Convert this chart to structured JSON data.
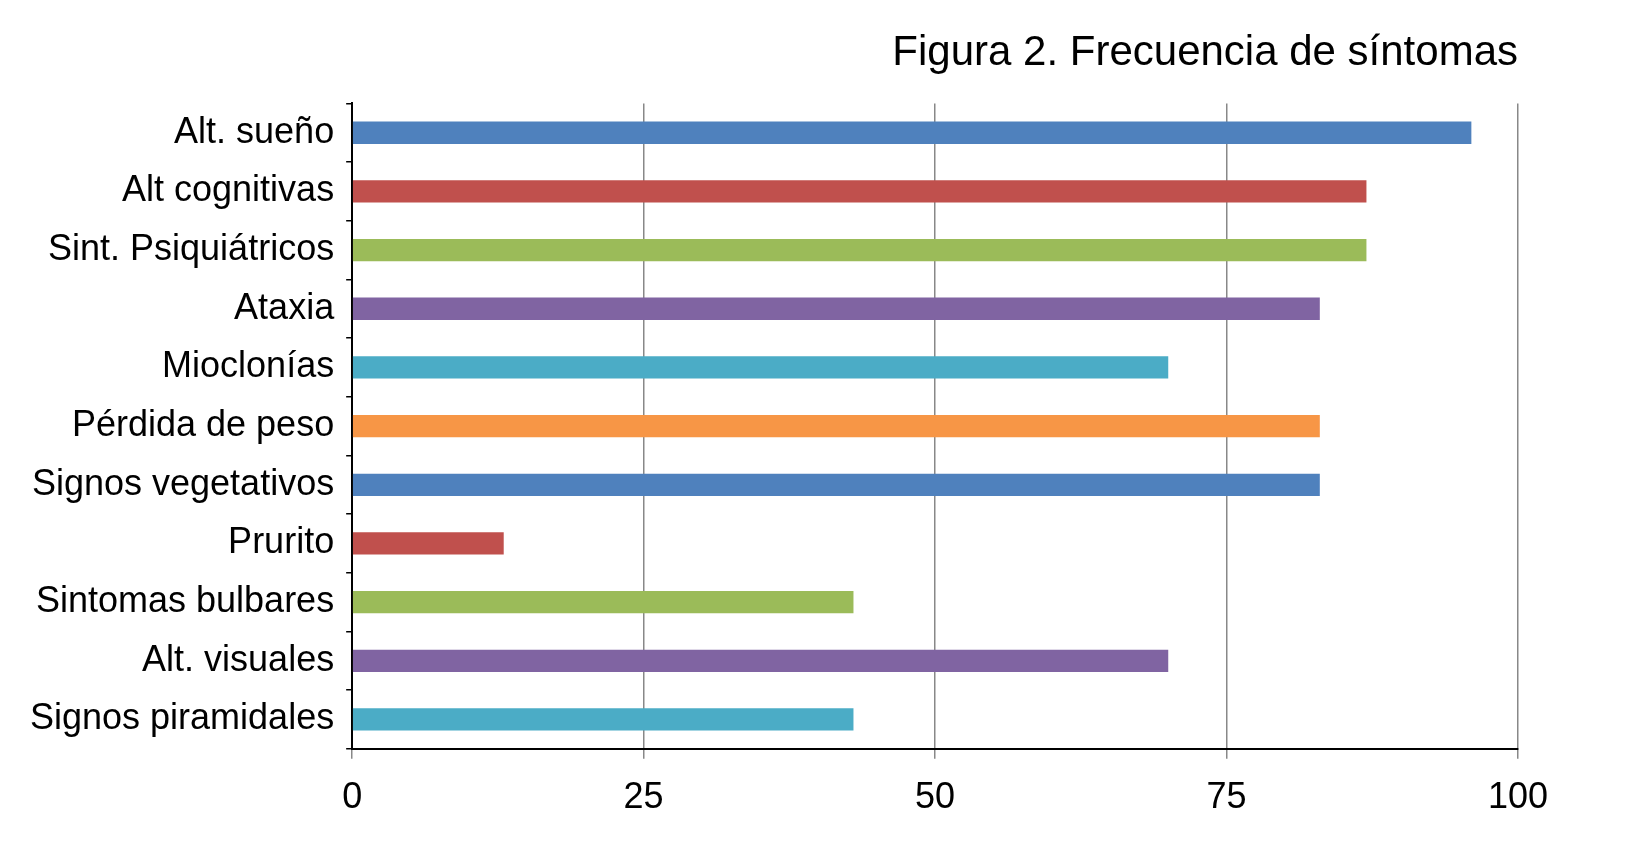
{
  "chart_data": {
    "type": "bar",
    "orientation": "horizontal",
    "title": "Figura 2. Frecuencia de síntomas",
    "categories": [
      "Alt. sueño",
      "Alt cognitivas",
      "Sint. Psiquiátricos",
      "Ataxia",
      "Mioclonías",
      "Pérdida de peso",
      "Signos vegetativos",
      "Prurito",
      "Sintomas bulbares",
      "Alt. visuales",
      "Signos piramidales"
    ],
    "values": [
      96,
      87,
      87,
      83,
      70,
      83,
      83,
      13,
      43,
      70,
      43
    ],
    "colors": [
      "#4f81bd",
      "#c0504d",
      "#9bbb59",
      "#8064a2",
      "#4bacc6",
      "#f79646",
      "#4f81bd",
      "#c0504d",
      "#9bbb59",
      "#8064a2",
      "#4bacc6"
    ],
    "xlim": [
      0,
      100
    ],
    "xticks": [
      0,
      25,
      50,
      75,
      100
    ],
    "grid": "x",
    "legend": false
  }
}
